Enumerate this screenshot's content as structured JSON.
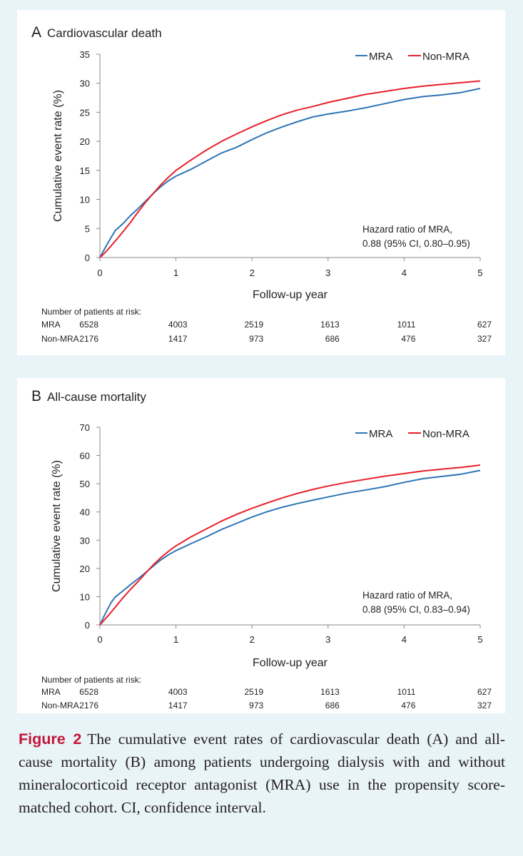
{
  "colors": {
    "mra": "#2e75b6",
    "non_mra": "#e8202a",
    "axis": "#888888",
    "caption_label": "#c4163a"
  },
  "chart_data": [
    {
      "type": "line",
      "panel_letter": "A",
      "title": "Cardiovascular death",
      "xlabel": "Follow-up year",
      "ylabel": "Cumulative event rate (%)",
      "xlim": [
        0,
        5
      ],
      "ylim": [
        0,
        35
      ],
      "xticks": [
        0,
        1,
        2,
        3,
        4,
        5
      ],
      "yticks": [
        0,
        5,
        10,
        15,
        20,
        25,
        30,
        35
      ],
      "legend": "top-right",
      "series": [
        {
          "name": "MRA",
          "x": [
            0,
            0.05,
            0.1,
            0.15,
            0.2,
            0.3,
            0.4,
            0.5,
            0.6,
            0.7,
            0.8,
            0.9,
            1.0,
            1.2,
            1.4,
            1.6,
            1.8,
            2.0,
            2.2,
            2.4,
            2.6,
            2.8,
            3.0,
            3.25,
            3.5,
            3.75,
            4.0,
            4.25,
            4.5,
            4.75,
            5.0
          ],
          "y": [
            0,
            1.2,
            2.4,
            3.5,
            4.6,
            5.8,
            7.2,
            8.4,
            9.7,
            11.0,
            12.2,
            13.2,
            14.0,
            15.2,
            16.6,
            18.0,
            19.0,
            20.3,
            21.5,
            22.5,
            23.4,
            24.2,
            24.7,
            25.2,
            25.8,
            26.5,
            27.2,
            27.7,
            28.0,
            28.4,
            29.1
          ]
        },
        {
          "name": "Non-MRA",
          "x": [
            0,
            0.05,
            0.1,
            0.2,
            0.3,
            0.4,
            0.5,
            0.6,
            0.7,
            0.8,
            0.9,
            1.0,
            1.2,
            1.4,
            1.6,
            1.8,
            2.0,
            2.2,
            2.4,
            2.6,
            2.8,
            3.0,
            3.25,
            3.5,
            3.75,
            4.0,
            4.25,
            4.5,
            4.75,
            5.0
          ],
          "y": [
            0,
            0.6,
            1.3,
            2.8,
            4.4,
            6.0,
            7.8,
            9.5,
            11.0,
            12.5,
            13.8,
            15.0,
            16.8,
            18.5,
            20.0,
            21.3,
            22.5,
            23.6,
            24.6,
            25.4,
            26.0,
            26.7,
            27.4,
            28.1,
            28.6,
            29.1,
            29.5,
            29.8,
            30.1,
            30.4
          ]
        }
      ],
      "annotation": [
        "Hazard ratio of MRA,",
        "0.88 (95% CI, 0.80–0.95)"
      ],
      "risk_table": {
        "header": "Number of patients at risk:",
        "rows": [
          {
            "label": "MRA",
            "values": [
              "6528",
              "4003",
              "2519",
              "1613",
              "1011",
              "627"
            ]
          },
          {
            "label": "Non-MRA",
            "values": [
              "2176",
              "1417",
              "973",
              "686",
              "476",
              "327"
            ]
          }
        ]
      }
    },
    {
      "type": "line",
      "panel_letter": "B",
      "title": "All-cause mortality",
      "xlabel": "Follow-up year",
      "ylabel": "Cumulative event rate (%)",
      "xlim": [
        0,
        5
      ],
      "ylim": [
        0,
        70
      ],
      "xticks": [
        0,
        1,
        2,
        3,
        4,
        5
      ],
      "yticks": [
        0,
        10,
        20,
        30,
        40,
        50,
        60,
        70
      ],
      "legend": "top-right",
      "series": [
        {
          "name": "MRA",
          "x": [
            0,
            0.05,
            0.1,
            0.15,
            0.2,
            0.3,
            0.4,
            0.5,
            0.6,
            0.7,
            0.8,
            0.9,
            1.0,
            1.2,
            1.4,
            1.6,
            1.8,
            2.0,
            2.2,
            2.4,
            2.6,
            2.8,
            3.0,
            3.25,
            3.5,
            3.75,
            4.0,
            4.25,
            4.5,
            4.75,
            5.0
          ],
          "y": [
            0,
            2.8,
            5.5,
            8.0,
            9.8,
            12.0,
            14.2,
            16.3,
            18.5,
            20.8,
            23.0,
            24.8,
            26.3,
            28.8,
            31.2,
            33.8,
            36.0,
            38.2,
            40.1,
            41.7,
            43.0,
            44.2,
            45.3,
            46.7,
            47.8,
            49.0,
            50.5,
            51.8,
            52.6,
            53.4,
            54.7
          ]
        },
        {
          "name": "Non-MRA",
          "x": [
            0,
            0.05,
            0.1,
            0.2,
            0.3,
            0.4,
            0.5,
            0.6,
            0.7,
            0.8,
            0.9,
            1.0,
            1.2,
            1.4,
            1.6,
            1.8,
            2.0,
            2.2,
            2.4,
            2.6,
            2.8,
            3.0,
            3.25,
            3.5,
            3.75,
            4.0,
            4.25,
            4.5,
            4.75,
            5.0
          ],
          "y": [
            0,
            1.5,
            3.0,
            6.2,
            9.5,
            12.5,
            15.3,
            18.3,
            21.2,
            23.8,
            26.0,
            28.0,
            31.2,
            34.0,
            36.8,
            39.2,
            41.3,
            43.2,
            45.0,
            46.6,
            48.0,
            49.2,
            50.5,
            51.6,
            52.7,
            53.6,
            54.5,
            55.2,
            55.8,
            56.6
          ]
        }
      ],
      "annotation": [
        "Hazard ratio of MRA,",
        "0.88 (95% CI, 0.83–0.94)"
      ],
      "risk_table": {
        "header": "Number of patients at risk:",
        "rows": [
          {
            "label": "MRA",
            "values": [
              "6528",
              "4003",
              "2519",
              "1613",
              "1011",
              "627"
            ]
          },
          {
            "label": "Non-MRA",
            "values": [
              "2176",
              "1417",
              "973",
              "686",
              "476",
              "327"
            ]
          }
        ]
      }
    }
  ],
  "caption": {
    "label": "Figure 2",
    "text": "The cumulative event rates of cardiovascular death (A) and all-cause mortality (B) among patients undergoing dialysis with and without mineralocorticoid receptor antagonist (MRA) use in the propensity score-matched cohort. CI, confidence interval."
  }
}
